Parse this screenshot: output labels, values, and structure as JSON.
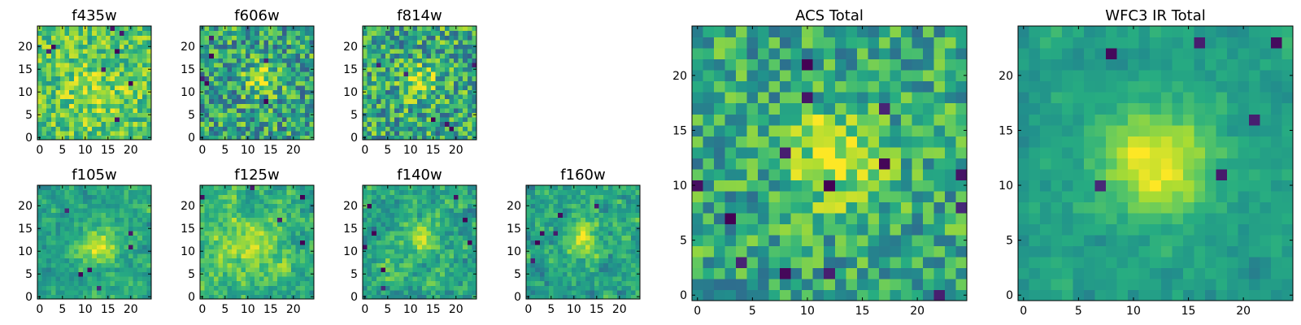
{
  "chart_data": [
    {
      "type": "heatmap",
      "title": "f435w",
      "colormap": "viridis",
      "grid": false,
      "x_range": [
        0,
        24
      ],
      "y_range": [
        0,
        24
      ],
      "x_ticks": [
        0,
        5,
        10,
        15,
        20
      ],
      "y_ticks": [
        0,
        5,
        10,
        15,
        20
      ],
      "x_tick_labels": [
        "0",
        "5",
        "10",
        "15",
        "20"
      ],
      "y_tick_labels": [
        "0",
        "5",
        "10",
        "15",
        "20"
      ],
      "resolution": 25,
      "seed": 11,
      "blob": {
        "x": 12,
        "y": 10,
        "sigma": 5,
        "amp": 0.12
      },
      "base": 0.72,
      "noise": 0.22,
      "dark_pixels": 8,
      "smooth": 0
    },
    {
      "type": "heatmap",
      "title": "f606w",
      "colormap": "viridis",
      "grid": false,
      "x_range": [
        0,
        24
      ],
      "y_range": [
        0,
        24
      ],
      "x_ticks": [
        0,
        5,
        10,
        15,
        20
      ],
      "y_ticks": [
        0,
        5,
        10,
        15,
        20
      ],
      "x_tick_labels": [
        "0",
        "5",
        "10",
        "15",
        "20"
      ],
      "y_tick_labels": [
        "0",
        "5",
        "10",
        "15",
        "20"
      ],
      "resolution": 25,
      "seed": 23,
      "blob": {
        "x": 13,
        "y": 13,
        "sigma": 2.5,
        "amp": 0.35
      },
      "base": 0.58,
      "noise": 0.3,
      "dark_pixels": 6,
      "smooth": 0
    },
    {
      "type": "heatmap",
      "title": "f814w",
      "colormap": "viridis",
      "grid": false,
      "x_range": [
        0,
        24
      ],
      "y_range": [
        0,
        24
      ],
      "x_ticks": [
        0,
        5,
        10,
        15,
        20
      ],
      "y_ticks": [
        0,
        5,
        10,
        15,
        20
      ],
      "x_tick_labels": [
        "0",
        "5",
        "10",
        "15",
        "20"
      ],
      "y_tick_labels": [
        "0",
        "5",
        "10",
        "15",
        "20"
      ],
      "resolution": 25,
      "seed": 37,
      "blob": {
        "x": 12,
        "y": 12,
        "sigma": 2.5,
        "amp": 0.32
      },
      "base": 0.6,
      "noise": 0.3,
      "dark_pixels": 6,
      "smooth": 0
    },
    {
      "type": "heatmap",
      "title": "f105w",
      "colormap": "viridis",
      "grid": false,
      "x_range": [
        0,
        24
      ],
      "y_range": [
        0,
        24
      ],
      "x_ticks": [
        0,
        5,
        10,
        15,
        20
      ],
      "y_ticks": [
        0,
        5,
        10,
        15,
        20
      ],
      "x_tick_labels": [
        "0",
        "5",
        "10",
        "15",
        "20"
      ],
      "y_tick_labels": [
        "0",
        "5",
        "10",
        "15",
        "20"
      ],
      "resolution": 25,
      "seed": 41,
      "blob": {
        "x": 13,
        "y": 11,
        "sigma": 3,
        "amp": 0.35
      },
      "base": 0.58,
      "noise": 0.22,
      "dark_pixels": 6,
      "smooth": 1
    },
    {
      "type": "heatmap",
      "title": "f125w",
      "colormap": "viridis",
      "grid": false,
      "x_range": [
        0,
        24
      ],
      "y_range": [
        0,
        24
      ],
      "x_ticks": [
        0,
        5,
        10,
        15,
        20
      ],
      "y_ticks": [
        0,
        5,
        10,
        15,
        20
      ],
      "x_tick_labels": [
        "0",
        "5",
        "10",
        "15",
        "20"
      ],
      "y_tick_labels": [
        "0",
        "5",
        "10",
        "15",
        "20"
      ],
      "resolution": 25,
      "seed": 53,
      "blob": {
        "x": 11,
        "y": 11,
        "sigma": 4,
        "amp": 0.2
      },
      "base": 0.66,
      "noise": 0.26,
      "dark_pixels": 5,
      "smooth": 1
    },
    {
      "type": "heatmap",
      "title": "f140w",
      "colormap": "viridis",
      "grid": false,
      "x_range": [
        0,
        24
      ],
      "y_range": [
        0,
        24
      ],
      "x_ticks": [
        0,
        5,
        10,
        15,
        20
      ],
      "y_ticks": [
        0,
        5,
        10,
        15,
        20
      ],
      "x_tick_labels": [
        "0",
        "5",
        "10",
        "15",
        "20"
      ],
      "y_tick_labels": [
        "0",
        "5",
        "10",
        "15",
        "20"
      ],
      "resolution": 25,
      "seed": 67,
      "blob": {
        "x": 12,
        "y": 13,
        "sigma": 3,
        "amp": 0.25
      },
      "base": 0.6,
      "noise": 0.28,
      "dark_pixels": 8,
      "smooth": 1
    },
    {
      "type": "heatmap",
      "title": "f160w",
      "colormap": "viridis",
      "grid": false,
      "x_range": [
        0,
        24
      ],
      "y_range": [
        0,
        24
      ],
      "x_ticks": [
        0,
        5,
        10,
        15,
        20
      ],
      "y_ticks": [
        0,
        5,
        10,
        15,
        20
      ],
      "x_tick_labels": [
        "0",
        "5",
        "10",
        "15",
        "20"
      ],
      "y_tick_labels": [
        "0",
        "5",
        "10",
        "15",
        "20"
      ],
      "resolution": 25,
      "seed": 79,
      "blob": {
        "x": 12,
        "y": 13,
        "sigma": 3,
        "amp": 0.3
      },
      "base": 0.58,
      "noise": 0.26,
      "dark_pixels": 6,
      "smooth": 1
    },
    {
      "type": "heatmap",
      "title": "ACS Total",
      "colormap": "viridis",
      "grid": false,
      "x_range": [
        0,
        24
      ],
      "y_range": [
        0,
        24
      ],
      "x_ticks": [
        0,
        5,
        10,
        15,
        20
      ],
      "y_ticks": [
        0,
        5,
        10,
        15,
        20
      ],
      "x_tick_labels": [
        "0",
        "5",
        "10",
        "15",
        "20"
      ],
      "y_tick_labels": [
        "0",
        "5",
        "10",
        "15",
        "20"
      ],
      "resolution": 25,
      "seed": 97,
      "blob": {
        "x": 12.5,
        "y": 12.5,
        "sigma": 3,
        "amp": 0.35
      },
      "base": 0.6,
      "noise": 0.24,
      "dark_pixels": 14,
      "smooth": 0
    },
    {
      "type": "heatmap",
      "title": "WFC3 IR Total",
      "colormap": "viridis",
      "grid": false,
      "x_range": [
        0,
        24
      ],
      "y_range": [
        0,
        24
      ],
      "x_ticks": [
        0,
        5,
        10,
        15,
        20
      ],
      "y_ticks": [
        0,
        5,
        10,
        15,
        20
      ],
      "x_tick_labels": [
        "0",
        "5",
        "10",
        "15",
        "20"
      ],
      "y_tick_labels": [
        "0",
        "5",
        "10",
        "15",
        "20"
      ],
      "resolution": 25,
      "seed": 113,
      "blob": {
        "x": 12,
        "y": 12,
        "sigma": 3.5,
        "amp": 0.38
      },
      "base": 0.56,
      "noise": 0.14,
      "dark_pixels": 6,
      "smooth": 1
    }
  ]
}
